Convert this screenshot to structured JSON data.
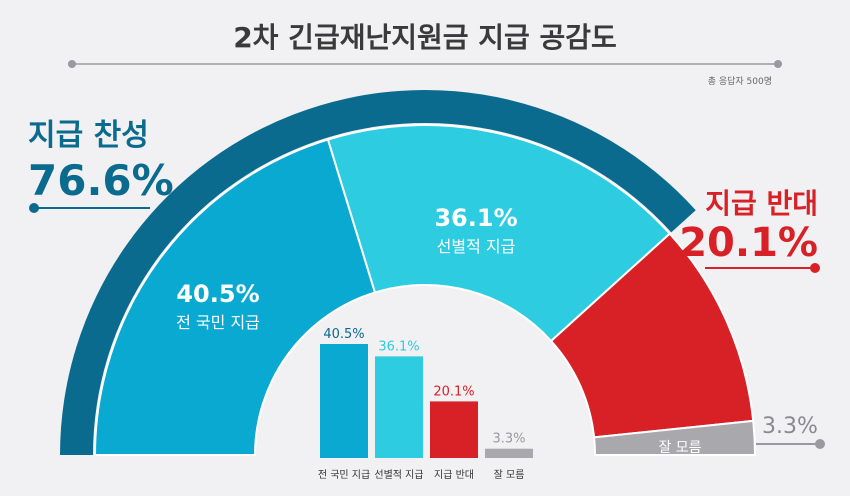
{
  "title": "2차 긴급재난지원금 지급 공감도",
  "sample_note": "총 응답자 500명",
  "colors": {
    "background": "#f1f1f3",
    "support_dark": "#0a6b8f",
    "all_citizens": "#0aa9d2",
    "selective": "#2dcce1",
    "oppose": "#d82126",
    "dont_know": "#a9a9ad"
  },
  "chart_data": {
    "type": "pie",
    "subtype": "half-donut",
    "categories": [
      "전 국민 지급",
      "선별적 지급",
      "지급 반대",
      "잘 모름"
    ],
    "values": [
      40.5,
      36.1,
      20.1,
      3.3
    ],
    "value_labels": [
      "40.5%",
      "36.1%",
      "20.1%",
      "3.3%"
    ],
    "group": {
      "support": {
        "label": "지급 찬성",
        "value": 76.6,
        "value_label": "76.6%"
      },
      "oppose": {
        "label": "지급 반대",
        "value": 20.1,
        "value_label": "20.1%"
      }
    },
    "dont_know": {
      "label": "잘 모름",
      "value": 3.3,
      "value_label": "3.3%"
    },
    "inset_bar": {
      "type": "bar",
      "categories": [
        "전 국민 지급",
        "선별적 지급",
        "지급 반대",
        "잘 모름"
      ],
      "values": [
        40.5,
        36.1,
        20.1,
        3.3
      ],
      "value_labels": [
        "40.5%",
        "36.1%",
        "20.1%",
        "3.3%"
      ]
    }
  }
}
